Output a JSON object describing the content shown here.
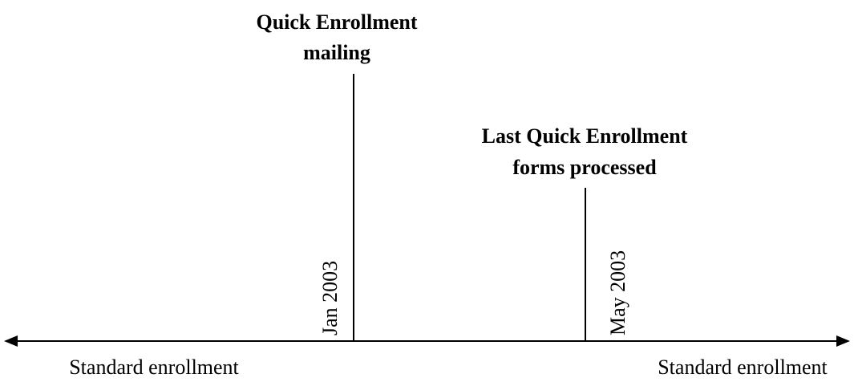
{
  "events": [
    {
      "label_lines": [
        "Quick Enrollment",
        "mailing"
      ],
      "date": "Jan 2003"
    },
    {
      "label_lines": [
        "Last Quick Enrollment",
        "forms processed"
      ],
      "date": "May 2003"
    }
  ],
  "periods": [
    "Standard enrollment",
    "Standard enrollment"
  ]
}
